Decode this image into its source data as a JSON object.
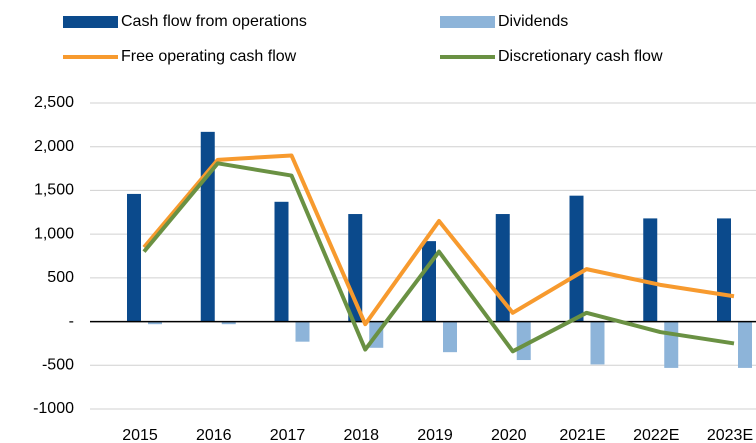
{
  "chart_data": {
    "type": "combo",
    "categories": [
      "2015",
      "2016",
      "2017",
      "2018",
      "2019",
      "2020",
      "2021E",
      "2022E",
      "2023E"
    ],
    "series": [
      {
        "name": "Cash flow from operations",
        "type": "bar",
        "color": "#0b4a8c",
        "values": [
          1460,
          2170,
          1370,
          1230,
          920,
          1230,
          1440,
          1180,
          1180
        ]
      },
      {
        "name": "Dividends",
        "type": "bar",
        "color": "#8db4d9",
        "values": [
          -30,
          -30,
          -230,
          -300,
          -350,
          -440,
          -490,
          -530,
          -530
        ]
      },
      {
        "name": "Free operating cash flow",
        "type": "line",
        "color": "#f79a2e",
        "values": [
          850,
          1850,
          1900,
          -30,
          1150,
          100,
          600,
          420,
          290
        ]
      },
      {
        "name": "Discretionary cash flow",
        "type": "line",
        "color": "#6a9143",
        "values": [
          800,
          1810,
          1670,
          -320,
          800,
          -340,
          100,
          -120,
          -250
        ]
      }
    ],
    "ylim": [
      -1000,
      2500
    ],
    "yticks": [
      -1000,
      -500,
      {
        "value": 0,
        "label": "-"
      },
      500,
      {
        "value": 1000,
        "label": "1,000"
      },
      {
        "value": 1500,
        "label": "1,500"
      },
      {
        "value": 2000,
        "label": "2,000"
      },
      {
        "value": 2500,
        "label": "2,500"
      }
    ],
    "grid": true
  }
}
